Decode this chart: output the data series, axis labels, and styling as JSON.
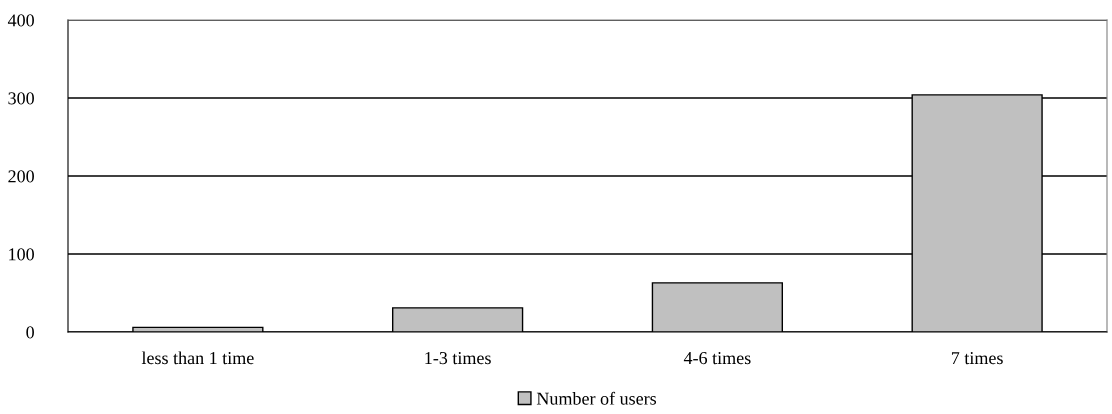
{
  "chart_data": {
    "type": "bar",
    "categories": [
      "less than 1 time",
      "1-3 times",
      "4-6 times",
      "7 times"
    ],
    "series": [
      {
        "name": "Number of users",
        "color": "#c0c0c0",
        "values": [
          6,
          31,
          63,
          304
        ]
      }
    ],
    "ylim": [
      0,
      400
    ],
    "yticks": [
      0,
      100,
      200,
      300,
      400
    ],
    "grid": "y",
    "legend": "bottom"
  }
}
